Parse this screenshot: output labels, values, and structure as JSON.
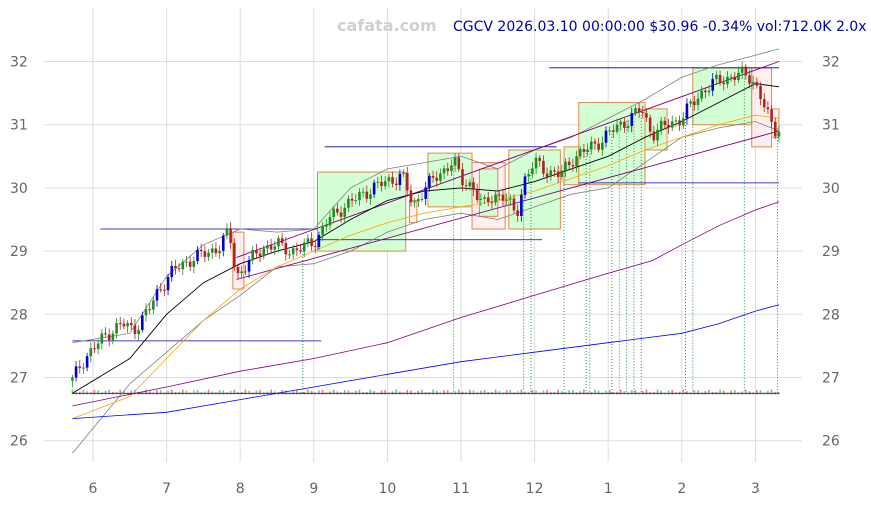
{
  "header": {
    "watermark": "cafata.com",
    "ticker_line": "CGCV 2026.03.10 00:00:00 $30.96 -0.34% vol:712.0K 2.0x"
  },
  "chart_data": {
    "type": "candlestick",
    "symbol": "CGCV",
    "last": {
      "date": "2026.03.10 00:00:00",
      "price": 30.96,
      "change_pct": -0.34,
      "volume": "712.0K",
      "volume_ratio": "2.0x"
    },
    "xlabels": [
      "6",
      "7",
      "8",
      "9",
      "10",
      "11",
      "12",
      "1",
      "2",
      "3"
    ],
    "xlabel_month_index": [
      0,
      1,
      2,
      3,
      4,
      5,
      6,
      7,
      8,
      9
    ],
    "ylabels": [
      "26",
      "27",
      "28",
      "29",
      "30",
      "31",
      "32"
    ],
    "ylim": [
      25.55,
      32.35
    ],
    "xlim_months": [
      -0.72,
      9.4
    ],
    "grid": true,
    "close_path": [
      [
        -0.28,
        26.95
      ],
      [
        -0.15,
        27.25
      ],
      [
        0.0,
        27.45
      ],
      [
        0.2,
        27.7
      ],
      [
        0.4,
        27.85
      ],
      [
        0.55,
        27.75
      ],
      [
        0.75,
        28.05
      ],
      [
        0.9,
        28.4
      ],
      [
        1.1,
        28.7
      ],
      [
        1.3,
        28.85
      ],
      [
        1.5,
        28.95
      ],
      [
        1.7,
        29.05
      ],
      [
        1.85,
        29.3
      ],
      [
        1.95,
        28.6
      ],
      [
        2.1,
        28.8
      ],
      [
        2.3,
        29.05
      ],
      [
        2.5,
        29.1
      ],
      [
        2.7,
        29.0
      ],
      [
        2.85,
        29.05
      ],
      [
        3.05,
        29.2
      ],
      [
        3.2,
        29.5
      ],
      [
        3.4,
        29.7
      ],
      [
        3.6,
        29.85
      ],
      [
        3.8,
        30.0
      ],
      [
        4.0,
        30.1
      ],
      [
        4.2,
        30.2
      ],
      [
        4.35,
        29.7
      ],
      [
        4.5,
        30.0
      ],
      [
        4.7,
        30.2
      ],
      [
        4.9,
        30.45
      ],
      [
        5.0,
        30.1
      ],
      [
        5.15,
        30.05
      ],
      [
        5.3,
        29.7
      ],
      [
        5.45,
        29.9
      ],
      [
        5.6,
        29.85
      ],
      [
        5.75,
        29.55
      ],
      [
        5.85,
        30.1
      ],
      [
        6.0,
        30.4
      ],
      [
        6.2,
        30.25
      ],
      [
        6.35,
        30.2
      ],
      [
        6.5,
        30.45
      ],
      [
        6.7,
        30.6
      ],
      [
        6.9,
        30.75
      ],
      [
        7.1,
        30.95
      ],
      [
        7.3,
        31.1
      ],
      [
        7.45,
        31.25
      ],
      [
        7.6,
        30.85
      ],
      [
        7.8,
        31.0
      ],
      [
        8.0,
        31.1
      ],
      [
        8.15,
        31.35
      ],
      [
        8.3,
        31.55
      ],
      [
        8.5,
        31.7
      ],
      [
        8.65,
        31.75
      ],
      [
        8.8,
        31.8
      ],
      [
        8.95,
        31.75
      ],
      [
        9.05,
        31.5
      ],
      [
        9.15,
        31.2
      ],
      [
        9.25,
        30.9
      ],
      [
        9.32,
        30.96
      ]
    ],
    "moving_averages": [
      {
        "name": "",
        "color": "#000000",
        "points": [
          [
            -0.28,
            26.75
          ],
          [
            0.5,
            27.3
          ],
          [
            1.0,
            28.0
          ],
          [
            1.5,
            28.5
          ],
          [
            2.0,
            28.8
          ],
          [
            2.5,
            29.0
          ],
          [
            3.0,
            29.15
          ],
          [
            3.5,
            29.5
          ],
          [
            4.0,
            29.8
          ],
          [
            4.5,
            29.95
          ],
          [
            5.0,
            30.0
          ],
          [
            5.5,
            29.95
          ],
          [
            6.0,
            30.1
          ],
          [
            6.5,
            30.3
          ],
          [
            7.0,
            30.5
          ],
          [
            7.5,
            30.8
          ],
          [
            8.0,
            31.05
          ],
          [
            8.5,
            31.35
          ],
          [
            9.0,
            31.65
          ],
          [
            9.32,
            31.6
          ]
        ]
      },
      {
        "name": "",
        "color": "#ffa500",
        "points": [
          [
            -0.28,
            26.35
          ],
          [
            0.5,
            26.7
          ],
          [
            1.0,
            27.3
          ],
          [
            1.5,
            27.9
          ],
          [
            2.0,
            28.4
          ],
          [
            2.5,
            28.75
          ],
          [
            3.0,
            29.0
          ],
          [
            3.5,
            29.25
          ],
          [
            4.0,
            29.45
          ],
          [
            4.5,
            29.6
          ],
          [
            5.0,
            29.7
          ],
          [
            5.5,
            29.8
          ],
          [
            6.0,
            29.95
          ],
          [
            6.5,
            30.15
          ],
          [
            7.0,
            30.35
          ],
          [
            7.5,
            30.6
          ],
          [
            8.0,
            30.8
          ],
          [
            8.5,
            31.0
          ],
          [
            9.0,
            31.15
          ],
          [
            9.32,
            31.1
          ]
        ]
      },
      {
        "name": "",
        "color": "#800080",
        "points": [
          [
            -0.28,
            26.55
          ],
          [
            1.0,
            26.85
          ],
          [
            2.0,
            27.1
          ],
          [
            3.0,
            27.3
          ],
          [
            4.0,
            27.55
          ],
          [
            5.0,
            27.95
          ],
          [
            6.0,
            28.3
          ],
          [
            7.0,
            28.65
          ],
          [
            7.6,
            28.85
          ],
          [
            8.0,
            29.1
          ],
          [
            8.5,
            29.4
          ],
          [
            9.0,
            29.65
          ],
          [
            9.32,
            29.78
          ]
        ]
      },
      {
        "name": "",
        "color": "#0000ff",
        "points": [
          [
            -0.28,
            26.35
          ],
          [
            1.0,
            26.45
          ],
          [
            2.0,
            26.65
          ],
          [
            3.0,
            26.85
          ],
          [
            4.0,
            27.05
          ],
          [
            5.0,
            27.25
          ],
          [
            6.0,
            27.4
          ],
          [
            7.0,
            27.55
          ],
          [
            8.0,
            27.7
          ],
          [
            8.5,
            27.85
          ],
          [
            9.0,
            28.05
          ],
          [
            9.32,
            28.15
          ]
        ]
      }
    ],
    "bands": {
      "color": "#808080",
      "upper": [
        [
          -0.28,
          27.55
        ],
        [
          0.5,
          27.7
        ],
        [
          1.0,
          28.6
        ],
        [
          1.5,
          29.1
        ],
        [
          2.0,
          29.35
        ],
        [
          2.5,
          29.3
        ],
        [
          3.0,
          29.35
        ],
        [
          3.5,
          30.0
        ],
        [
          4.0,
          30.3
        ],
        [
          4.5,
          30.4
        ],
        [
          5.0,
          30.5
        ],
        [
          5.5,
          30.3
        ],
        [
          6.0,
          30.6
        ],
        [
          6.5,
          30.8
        ],
        [
          7.0,
          31.1
        ],
        [
          7.5,
          31.4
        ],
        [
          8.0,
          31.75
        ],
        [
          8.5,
          31.95
        ],
        [
          9.0,
          32.1
        ],
        [
          9.32,
          32.2
        ]
      ],
      "lower": [
        [
          -0.28,
          25.8
        ],
        [
          0.5,
          26.9
        ],
        [
          1.0,
          27.4
        ],
        [
          1.5,
          27.9
        ],
        [
          2.0,
          28.3
        ],
        [
          2.5,
          28.75
        ],
        [
          3.0,
          28.8
        ],
        [
          3.5,
          29.0
        ],
        [
          4.0,
          29.3
        ],
        [
          4.5,
          29.5
        ],
        [
          5.0,
          29.6
        ],
        [
          5.5,
          29.5
        ],
        [
          6.0,
          29.7
        ],
        [
          6.5,
          29.9
        ],
        [
          7.0,
          30.0
        ],
        [
          7.5,
          30.4
        ],
        [
          8.0,
          30.8
        ],
        [
          8.5,
          30.95
        ],
        [
          9.0,
          31.05
        ],
        [
          9.32,
          30.9
        ]
      ]
    },
    "channel": {
      "color": "#800080",
      "upper": [
        [
          1.95,
          28.9
        ],
        [
          9.32,
          32.0
        ]
      ],
      "lower": [
        [
          1.95,
          28.55
        ],
        [
          9.32,
          30.9
        ]
      ]
    },
    "horizontal_levels": [
      {
        "price": 27.58,
        "from": -0.28,
        "to": 3.1
      },
      {
        "price": 29.35,
        "from": 0.1,
        "to": 3.05
      },
      {
        "price": 29.18,
        "from": 3.05,
        "to": 6.1
      },
      {
        "price": 30.65,
        "from": 3.15,
        "to": 6.3
      },
      {
        "price": 30.08,
        "from": 6.6,
        "to": 9.32
      },
      {
        "price": 31.9,
        "from": 6.2,
        "to": 9.32
      },
      {
        "price": 26.75,
        "from": -0.28,
        "to": 9.32
      }
    ],
    "zones": [
      {
        "kind": "up",
        "from": 3.05,
        "to": 4.25,
        "low": 29.0,
        "high": 30.25
      },
      {
        "kind": "up",
        "from": 4.55,
        "to": 5.15,
        "low": 29.7,
        "high": 30.55
      },
      {
        "kind": "down",
        "from": 1.9,
        "to": 2.05,
        "low": 28.4,
        "high": 29.3
      },
      {
        "kind": "down",
        "from": 4.3,
        "to": 4.4,
        "low": 29.45,
        "high": 29.8
      },
      {
        "kind": "down",
        "from": 5.15,
        "to": 5.6,
        "low": 29.35,
        "high": 30.4
      },
      {
        "kind": "up",
        "from": 5.25,
        "to": 5.5,
        "low": 29.55,
        "high": 30.3
      },
      {
        "kind": "up",
        "from": 5.65,
        "to": 6.35,
        "low": 29.35,
        "high": 30.6
      },
      {
        "kind": "up",
        "from": 6.4,
        "to": 6.6,
        "low": 30.05,
        "high": 30.65
      },
      {
        "kind": "up",
        "from": 6.6,
        "to": 7.5,
        "low": 30.05,
        "high": 31.35
      },
      {
        "kind": "up",
        "from": 7.5,
        "to": 7.8,
        "low": 30.6,
        "high": 31.25
      },
      {
        "kind": "up",
        "from": 8.15,
        "to": 8.95,
        "low": 31.0,
        "high": 31.9
      },
      {
        "kind": "down",
        "from": 8.95,
        "to": 9.22,
        "low": 30.65,
        "high": 31.9
      },
      {
        "kind": "down",
        "from": 9.22,
        "to": 9.32,
        "low": 30.8,
        "high": 31.25
      }
    ],
    "event_markers": [
      2.85,
      4.9,
      5.85,
      5.95,
      6.4,
      6.7,
      6.75,
      7.05,
      7.15,
      7.25,
      7.35,
      7.45,
      8.05,
      8.15,
      8.85,
      9.3
    ],
    "colors": {
      "up": "#228b22",
      "down": "#b22222",
      "big_up": "#0000cc",
      "grid": "#dddddd",
      "zone_up": "#ccffcc",
      "zone_down": "#ffe8e8",
      "zone_border": "#e08a4a",
      "level": "#0000aa",
      "marker": "#2e8b57"
    }
  }
}
